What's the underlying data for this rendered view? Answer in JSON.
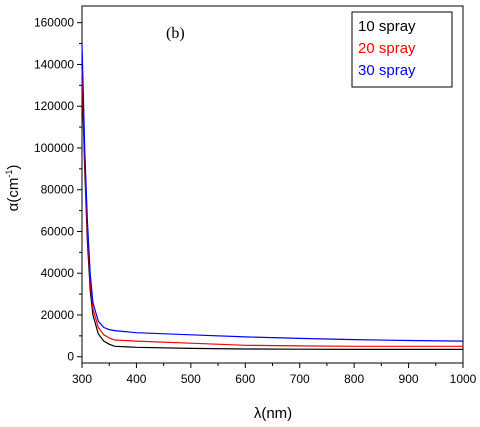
{
  "chart_data": {
    "type": "line",
    "panel_label": "(b)",
    "xlabel": "λ(nm)",
    "ylabel_main": "α(cm",
    "ylabel_sup": "-1",
    "ylabel_close": ")",
    "xlim": [
      300,
      1000
    ],
    "ylim": [
      -3000,
      168000
    ],
    "x_ticks": [
      "300",
      "400",
      "500",
      "600",
      "700",
      "800",
      "900",
      "1000"
    ],
    "y_ticks": [
      "0",
      "20000",
      "40000",
      "60000",
      "80000",
      "100000",
      "120000",
      "140000",
      "160000"
    ],
    "legend_position": "top-right",
    "grid": false,
    "series": [
      {
        "name": "10 spray",
        "color": "#000000",
        "points": [
          [
            300,
            134000
          ],
          [
            305,
            90000
          ],
          [
            310,
            55000
          ],
          [
            315,
            32000
          ],
          [
            320,
            20000
          ],
          [
            330,
            11000
          ],
          [
            340,
            7500
          ],
          [
            350,
            6000
          ],
          [
            360,
            5000
          ],
          [
            400,
            4500
          ],
          [
            500,
            4000
          ],
          [
            600,
            3700
          ],
          [
            700,
            3600
          ],
          [
            800,
            3500
          ],
          [
            900,
            3500
          ],
          [
            1000,
            3500
          ]
        ]
      },
      {
        "name": "20 spray",
        "color": "#ff0000",
        "points": [
          [
            300,
            138000
          ],
          [
            305,
            95000
          ],
          [
            310,
            60000
          ],
          [
            315,
            36000
          ],
          [
            320,
            23000
          ],
          [
            330,
            14000
          ],
          [
            340,
            10500
          ],
          [
            350,
            9000
          ],
          [
            360,
            8000
          ],
          [
            400,
            7500
          ],
          [
            500,
            6500
          ],
          [
            600,
            5500
          ],
          [
            700,
            5200
          ],
          [
            800,
            5000
          ],
          [
            900,
            5000
          ],
          [
            1000,
            5000
          ]
        ]
      },
      {
        "name": "30 spray",
        "color": "#0000ff",
        "points": [
          [
            300,
            150000
          ],
          [
            302,
            130000
          ],
          [
            305,
            100000
          ],
          [
            310,
            65000
          ],
          [
            315,
            40000
          ],
          [
            320,
            26000
          ],
          [
            330,
            17000
          ],
          [
            340,
            14000
          ],
          [
            350,
            13000
          ],
          [
            360,
            12500
          ],
          [
            400,
            11500
          ],
          [
            500,
            10500
          ],
          [
            600,
            9500
          ],
          [
            700,
            8800
          ],
          [
            800,
            8200
          ],
          [
            900,
            7800
          ],
          [
            1000,
            7500
          ]
        ]
      }
    ]
  }
}
